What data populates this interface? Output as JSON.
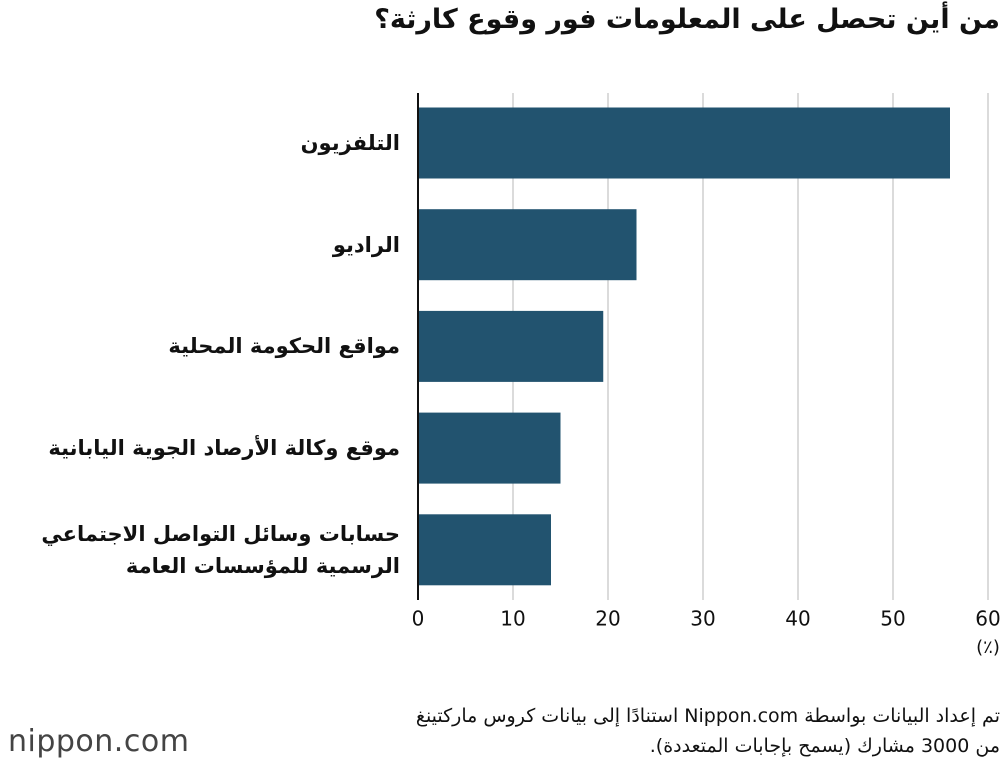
{
  "chart_data": {
    "type": "hbar",
    "title": "من أين تحصل على المعلومات فور وقوع كارثة؟",
    "categories": [
      "التلفزيون",
      "الراديو",
      "مواقع الحكومة المحلية",
      "موقع وكالة الأرصاد الجوية اليابانية",
      "حسابات وسائل التواصل الاجتماعي الرسمية للمؤسسات العامة"
    ],
    "values": [
      56,
      23,
      19.5,
      15,
      14
    ],
    "color": "#22536f",
    "xlim": [
      0,
      60
    ],
    "xticks": [
      0,
      10,
      20,
      30,
      40,
      50,
      60
    ],
    "x_unit": "(٪)",
    "grid": true,
    "note": [
      "تم إعداد البيانات بواسطة Nippon.com استنادًا إلى بيانات كروس ماركتينغ",
      "من 3000 مشارك (يسمح بإجابات المتعددة)."
    ],
    "logo": "nippon.com"
  }
}
